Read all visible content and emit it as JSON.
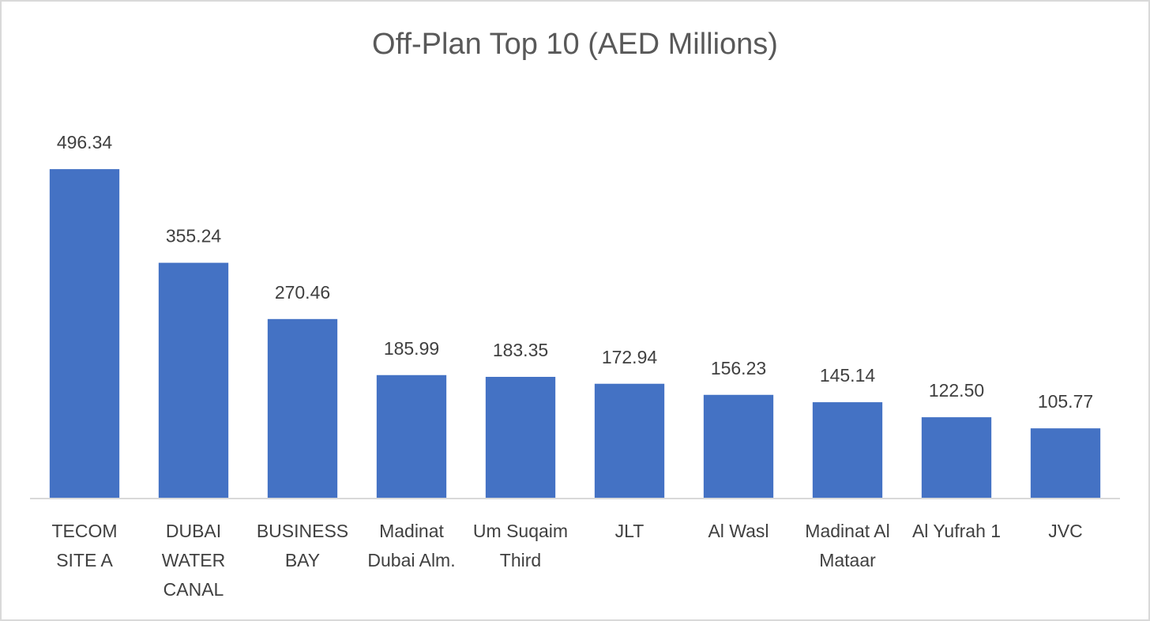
{
  "chart_data": {
    "type": "bar",
    "title": "Off-Plan Top 10 (AED Millions)",
    "categories": [
      "TECOM SITE A",
      "DUBAI WATER CANAL",
      "BUSINESS BAY",
      "Madinat Dubai Alm.",
      "Um Suqaim Third",
      "JLT",
      "Al Wasl",
      "Madinat Al Mataar",
      "Al Yufrah 1",
      "JVC"
    ],
    "values": [
      496.34,
      355.24,
      270.46,
      185.99,
      183.35,
      172.94,
      156.23,
      145.14,
      122.5,
      105.77
    ],
    "value_labels": [
      "496.34",
      "355.24",
      "270.46",
      "185.99",
      "183.35",
      "172.94",
      "156.23",
      "145.14",
      "122.50",
      "105.77"
    ],
    "color": "#4472c4",
    "ylim": [
      0,
      600
    ]
  }
}
